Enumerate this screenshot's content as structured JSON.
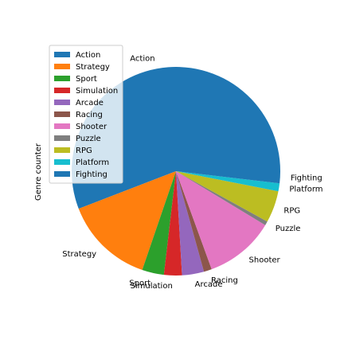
{
  "chart_data": {
    "type": "pie",
    "ylabel": "Genre counter",
    "start_angle_deg": 0,
    "direction": "counterclockwise",
    "legend_position": "upper-left",
    "labels": [
      "Action",
      "Strategy",
      "Sport",
      "Simulation",
      "Arcade",
      "Racing",
      "Shooter",
      "Puzzle",
      "RPG",
      "Platform",
      "Fighting"
    ],
    "values": [
      181,
      45,
      11,
      9,
      11,
      4,
      35,
      2,
      16,
      4,
      6
    ],
    "colors": [
      "#1f77b4",
      "#ff7f0e",
      "#2ca02c",
      "#d62728",
      "#9467bd",
      "#8c564b",
      "#e377c2",
      "#7f7f7f",
      "#bcbd22",
      "#17becf",
      "#1f77b4"
    ]
  }
}
